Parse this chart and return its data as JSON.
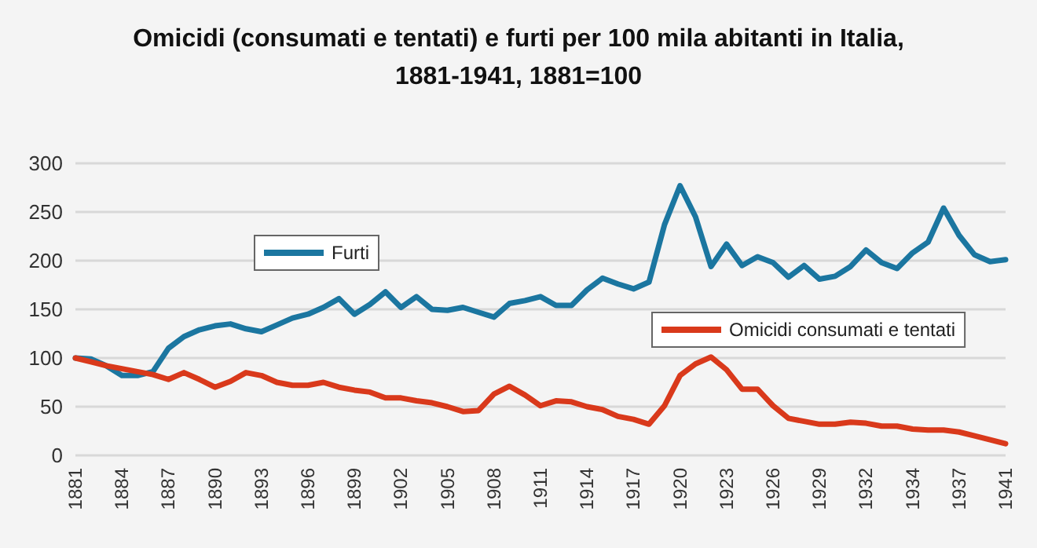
{
  "chart_data": {
    "type": "line",
    "title": "Omicidi (consumati e tentati) e furti per 100 mila abitanti in Italia,\n1881-1941, 1881=100",
    "categories": [
      "1881",
      null,
      null,
      "1884",
      null,
      null,
      "1887",
      null,
      null,
      "1890",
      null,
      null,
      "1893",
      null,
      null,
      "1896",
      null,
      null,
      "1899",
      null,
      null,
      "1902",
      null,
      null,
      "1905",
      null,
      null,
      "1908",
      null,
      null,
      "1911",
      null,
      null,
      "1914",
      null,
      null,
      "1917",
      null,
      null,
      "1920",
      null,
      null,
      "1923",
      null,
      null,
      "1926",
      null,
      null,
      "1929",
      null,
      null,
      "1932",
      null,
      null,
      "1934",
      null,
      null,
      "1937",
      null,
      null,
      "1941"
    ],
    "series": [
      {
        "name": "Furti",
        "color": "#1b76a0",
        "values": [
          100,
          99,
          92,
          82,
          82,
          86,
          110,
          122,
          129,
          133,
          135,
          130,
          127,
          134,
          141,
          145,
          152,
          161,
          145,
          155,
          168,
          152,
          163,
          150,
          149,
          152,
          147,
          142,
          156,
          159,
          163,
          154,
          154,
          170,
          182,
          176,
          171,
          178,
          237,
          277,
          245,
          194,
          217,
          195,
          204,
          198,
          183,
          195,
          181,
          184,
          194,
          211,
          198,
          192,
          208,
          219,
          254,
          226,
          206,
          199,
          201
        ]
      },
      {
        "name": "Omicidi consumati e tentati",
        "color": "#d9391b",
        "values": [
          100,
          96,
          92,
          89,
          86,
          83,
          78,
          85,
          78,
          70,
          76,
          85,
          82,
          75,
          72,
          72,
          75,
          70,
          67,
          65,
          59,
          59,
          56,
          54,
          50,
          45,
          46,
          63,
          71,
          62,
          51,
          56,
          55,
          50,
          47,
          40,
          37,
          32,
          51,
          82,
          94,
          101,
          88,
          68,
          68,
          51,
          38,
          35,
          32,
          32,
          34,
          33,
          30,
          30,
          27,
          26,
          26,
          24,
          20,
          16,
          12
        ]
      }
    ],
    "ylim": [
      0,
      300
    ],
    "yticks": [
      0,
      50,
      100,
      150,
      200,
      250,
      300
    ],
    "grid": "y",
    "legend": "top"
  }
}
